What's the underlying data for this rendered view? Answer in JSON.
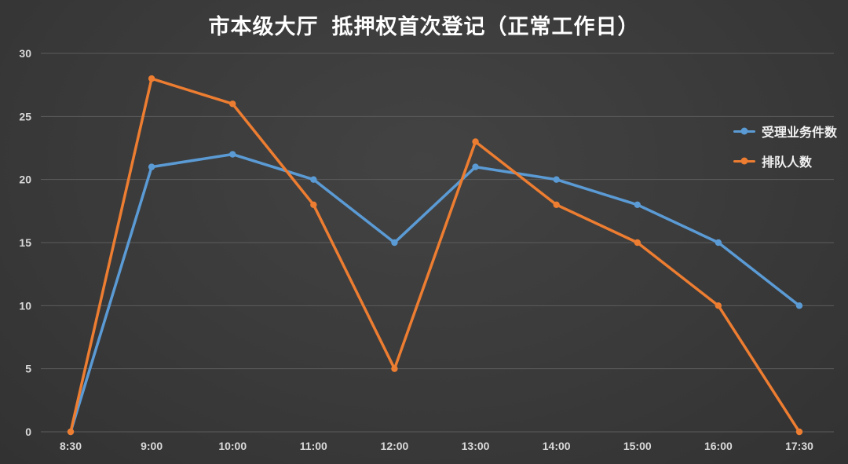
{
  "chart_data": {
    "type": "line",
    "title": "市本级大厅  抵押权首次登记（正常工作日）",
    "categories": [
      "8:30",
      "9:00",
      "10:00",
      "11:00",
      "12:00",
      "13:00",
      "14:00",
      "15:00",
      "16:00",
      "17:30"
    ],
    "series": [
      {
        "name": "受理业务件数",
        "color": "#5B9BD5",
        "values": [
          0,
          21,
          22,
          20,
          15,
          21,
          20,
          18,
          15,
          10
        ]
      },
      {
        "name": "排队人数",
        "color": "#ED7D31",
        "values": [
          0,
          28,
          26,
          18,
          5,
          23,
          18,
          15,
          10,
          0
        ]
      }
    ],
    "xlabel": "",
    "ylabel": "",
    "ylim": [
      0,
      30
    ],
    "yticks": [
      0,
      5,
      10,
      15,
      20,
      25,
      30
    ],
    "grid": true,
    "legend_position": "middle-right",
    "colors": {
      "background": "#3a3a3a",
      "gridline": "#5c5c5c",
      "tick_label": "#d9d9d9",
      "title": "#ffffff"
    }
  }
}
